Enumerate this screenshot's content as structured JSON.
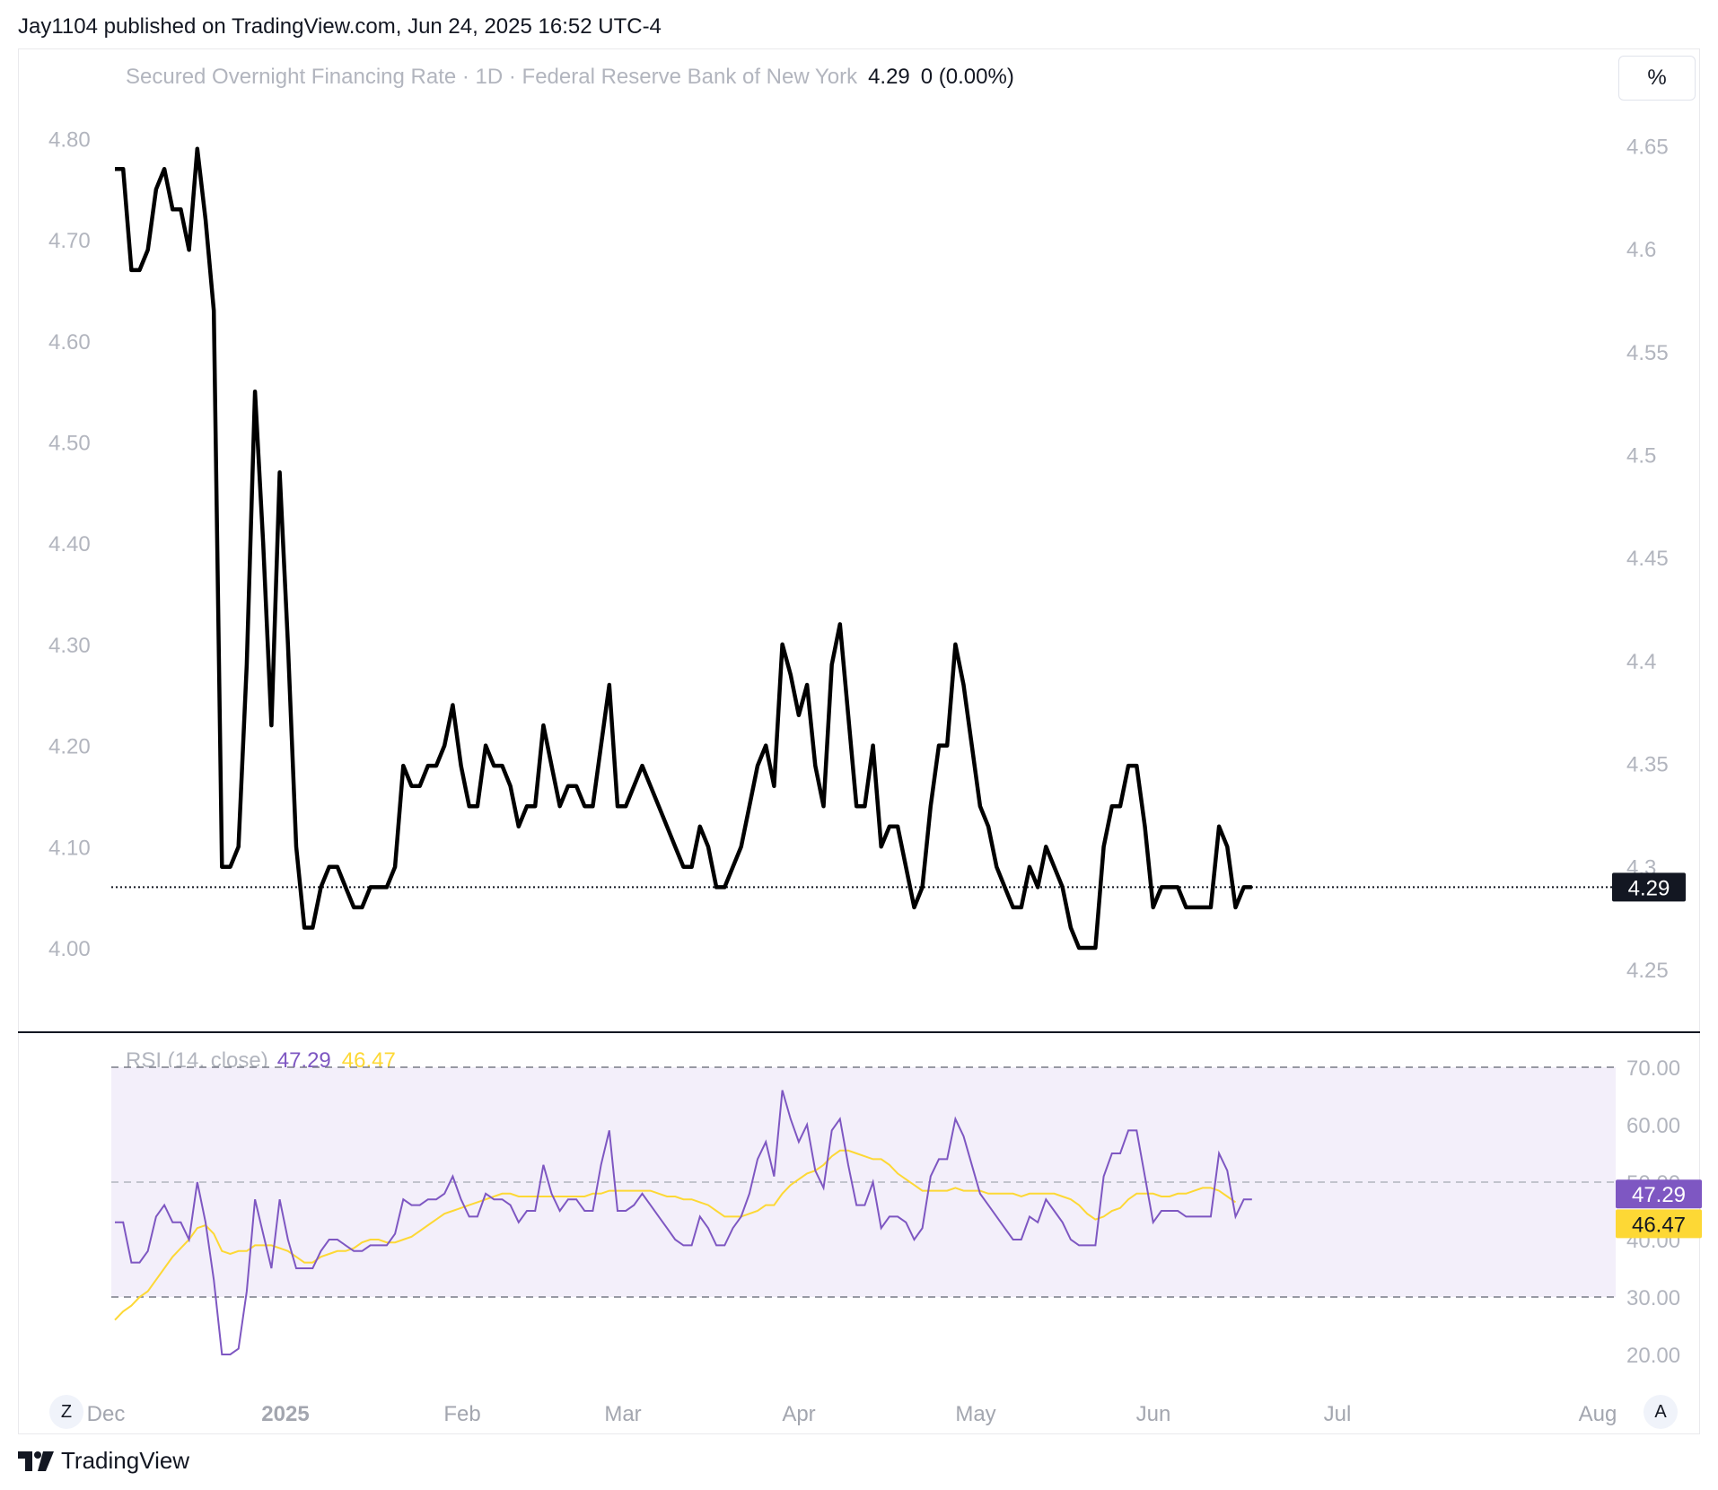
{
  "header": {
    "publish_line": "Jay1104 published on TradingView.com, Jun 24, 2025 16:52 UTC-4"
  },
  "legend": {
    "symbol": "Secured Overnight Financing Rate · 1D · Federal Reserve Bank of New York",
    "last": "4.29",
    "change": "0 (0.00%)"
  },
  "toolbar": {
    "scale_label": "%",
    "zoom_label": "Z",
    "auto_label": "A"
  },
  "rsi_legend": {
    "name": "RSI (14, close)",
    "rsi_value": "47.29",
    "ma_value": "46.47"
  },
  "footer": {
    "brand": "TradingView"
  },
  "colors": {
    "price_line": "#000000",
    "rsi_line": "#7e57c2",
    "rsi_ma_line": "#fdd835",
    "rsi_band": "#f3effa",
    "axis_text": "#b2b5be"
  },
  "chart_data": [
    {
      "type": "line",
      "title": "Secured Overnight Financing Rate · 1D · Federal Reserve Bank of New York",
      "left_axis_ticks": [
        "4.80",
        "4.70",
        "4.60",
        "4.50",
        "4.40",
        "4.30",
        "4.20",
        "4.10",
        "4.00"
      ],
      "right_axis_ticks": [
        "4.65",
        "4.6",
        "4.55",
        "4.5",
        "4.45",
        "4.4",
        "4.35",
        "4.3",
        "4.25"
      ],
      "ylim": [
        3.92,
        4.85
      ],
      "x_ticks": [
        "Dec",
        "2025",
        "Feb",
        "Mar",
        "Apr",
        "May",
        "Jun",
        "Jul",
        "Aug"
      ],
      "last_value_label": "4.29",
      "last_value": 4.06,
      "series": [
        {
          "values": [
            4.77,
            4.77,
            4.67,
            4.67,
            4.69,
            4.75,
            4.77,
            4.73,
            4.73,
            4.69,
            4.79,
            4.72,
            4.63,
            4.08,
            4.08,
            4.1,
            4.28,
            4.55,
            4.4,
            4.22,
            4.47,
            4.3,
            4.1,
            4.02,
            4.02,
            4.06,
            4.08,
            4.08,
            4.06,
            4.04,
            4.04,
            4.06,
            4.06,
            4.06,
            4.08,
            4.18,
            4.16,
            4.16,
            4.18,
            4.18,
            4.2,
            4.24,
            4.18,
            4.14,
            4.14,
            4.2,
            4.18,
            4.18,
            4.16,
            4.12,
            4.14,
            4.14,
            4.22,
            4.18,
            4.14,
            4.16,
            4.16,
            4.14,
            4.14,
            4.2,
            4.26,
            4.14,
            4.14,
            4.16,
            4.18,
            4.16,
            4.14,
            4.12,
            4.1,
            4.08,
            4.08,
            4.12,
            4.1,
            4.06,
            4.06,
            4.08,
            4.1,
            4.14,
            4.18,
            4.2,
            4.16,
            4.3,
            4.27,
            4.23,
            4.26,
            4.18,
            4.14,
            4.28,
            4.32,
            4.23,
            4.14,
            4.14,
            4.2,
            4.1,
            4.12,
            4.12,
            4.08,
            4.04,
            4.06,
            4.14,
            4.2,
            4.2,
            4.3,
            4.26,
            4.2,
            4.14,
            4.12,
            4.08,
            4.06,
            4.04,
            4.04,
            4.08,
            4.06,
            4.1,
            4.08,
            4.06,
            4.02,
            4.0,
            4.0,
            4.0,
            4.1,
            4.14,
            4.14,
            4.18,
            4.18,
            4.12,
            4.04,
            4.06,
            4.06,
            4.06,
            4.04,
            4.04,
            4.04,
            4.04,
            4.12,
            4.1,
            4.04,
            4.06,
            4.06
          ]
        }
      ]
    },
    {
      "type": "line",
      "title": "RSI (14, close)",
      "right_axis_ticks": [
        "70.00",
        "60.00",
        "50.00",
        "40.00",
        "30.00",
        "20.00"
      ],
      "ylim": [
        17,
        73
      ],
      "bands": [
        30,
        50,
        70
      ],
      "series": [
        {
          "name": "RSI",
          "values": [
            43,
            43,
            36,
            36,
            38,
            44,
            46,
            43,
            43,
            40,
            50,
            43,
            33,
            20,
            20,
            21,
            31,
            47,
            41,
            35,
            47,
            40,
            35,
            35,
            35,
            38,
            40,
            40,
            39,
            38,
            38,
            39,
            39,
            39,
            41,
            47,
            46,
            46,
            47,
            47,
            48,
            51,
            47,
            44,
            44,
            48,
            47,
            47,
            46,
            43,
            45,
            45,
            53,
            48,
            45,
            47,
            47,
            45,
            45,
            53,
            59,
            45,
            45,
            46,
            48,
            46,
            44,
            42,
            40,
            39,
            39,
            44,
            42,
            39,
            39,
            42,
            44,
            48,
            54,
            57,
            51,
            66,
            61,
            57,
            60,
            52,
            49,
            59,
            61,
            53,
            46,
            46,
            50,
            42,
            44,
            44,
            43,
            40,
            42,
            51,
            54,
            54,
            61,
            58,
            53,
            48,
            46,
            44,
            42,
            40,
            40,
            44,
            43,
            47,
            45,
            43,
            40,
            39,
            39,
            39,
            51,
            55,
            55,
            59,
            59,
            51,
            43,
            45,
            45,
            45,
            44,
            44,
            44,
            44,
            55,
            52,
            44,
            47,
            47
          ]
        },
        {
          "name": "RSI-based MA",
          "values": [
            26,
            27.5,
            28.5,
            30,
            31,
            33,
            35,
            37,
            38.5,
            40,
            42,
            42.5,
            41,
            38,
            37.5,
            38,
            38,
            39,
            39,
            39,
            38.5,
            38,
            37,
            36,
            36,
            37,
            37.5,
            38,
            38,
            38.5,
            39.5,
            40,
            40,
            39.5,
            39.5,
            40,
            40.5,
            41.5,
            42.5,
            43.5,
            44.5,
            45,
            45.5,
            46,
            46.5,
            47,
            47.5,
            48,
            48,
            47.5,
            47.5,
            47.5,
            47.5,
            47.5,
            47.5,
            47.5,
            47.5,
            47.5,
            48,
            48,
            48.5,
            48.5,
            48.5,
            48.5,
            48.5,
            48.5,
            48,
            47.5,
            47.5,
            47,
            47,
            46.5,
            46,
            45,
            44,
            44,
            44,
            44.5,
            45,
            46,
            46,
            48,
            49.5,
            50.5,
            51.5,
            52,
            53,
            54.5,
            55.5,
            55.5,
            55,
            54.5,
            54,
            54,
            53,
            51.5,
            50.5,
            49.5,
            48.5,
            48.5,
            48.5,
            48.5,
            49,
            48.5,
            48.5,
            48.5,
            48,
            48,
            48,
            48,
            47.5,
            48,
            48,
            48,
            48,
            47.5,
            47,
            46,
            44.5,
            43.5,
            44,
            45,
            45.5,
            47,
            48,
            48,
            48,
            47.5,
            47.5,
            48,
            48,
            48.5,
            49,
            49,
            48.5,
            47.5,
            46.5
          ]
        }
      ]
    }
  ]
}
